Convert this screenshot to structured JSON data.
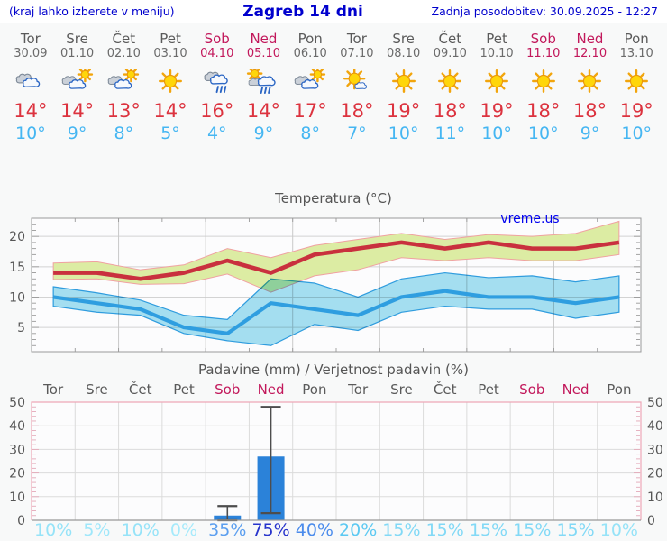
{
  "header": {
    "left_note": "(kraj lahko izberete v meniju)",
    "title": "Zagreb 14 dni",
    "updated": "Zadnja posodobitev: 30.09.2025 - 12:27"
  },
  "colors": {
    "header_blue": "#0000CD",
    "weekend_red": "#C2185B",
    "weekday_gray": "#5A5A5A",
    "high_temp_red": "#DC333F",
    "low_temp_blue": "#45B6F2",
    "temp_max_line": "#C9303E",
    "temp_max_band": "#DCECA3",
    "temp_band_edge": "#F0A1A1",
    "temp_min_line": "#2F9EE0",
    "temp_min_band": "#A6E1F2",
    "precip_bar": "#2B82D9",
    "whisker": "#4D4D4D",
    "precip_frame_pink": "#EDA7B7",
    "watermark_blue": "#0000EE"
  },
  "forecast": {
    "days": [
      {
        "name": "Tor",
        "date": "30.09",
        "weekend": false,
        "icon": "cloudy",
        "high": "14°",
        "low": "10°",
        "prob": "10%",
        "prob_color": "#96E3F8"
      },
      {
        "name": "Sre",
        "date": "01.10",
        "weekend": false,
        "icon": "sun-clouds",
        "high": "14°",
        "low": "9°",
        "prob": "5%",
        "prob_color": "#9FE7FA"
      },
      {
        "name": "Čet",
        "date": "02.10",
        "weekend": false,
        "icon": "sun-clouds",
        "high": "13°",
        "low": "8°",
        "prob": "10%",
        "prob_color": "#96E3F8"
      },
      {
        "name": "Pet",
        "date": "03.10",
        "weekend": false,
        "icon": "sunny",
        "high": "14°",
        "low": "5°",
        "prob": "0%",
        "prob_color": "#A6EAFB"
      },
      {
        "name": "Sob",
        "date": "04.10",
        "weekend": true,
        "icon": "rain",
        "high": "16°",
        "low": "4°",
        "prob": "35%",
        "prob_color": "#5C9FEF"
      },
      {
        "name": "Ned",
        "date": "05.10",
        "weekend": true,
        "icon": "sun-rain",
        "high": "14°",
        "low": "9°",
        "prob": "75%",
        "prob_color": "#2734CC"
      },
      {
        "name": "Pon",
        "date": "06.10",
        "weekend": false,
        "icon": "sun-clouds",
        "high": "17°",
        "low": "8°",
        "prob": "40%",
        "prob_color": "#4B8CEC"
      },
      {
        "name": "Tor",
        "date": "07.10",
        "weekend": false,
        "icon": "sun-cloud",
        "high": "18°",
        "low": "7°",
        "prob": "20%",
        "prob_color": "#5CC9F2"
      },
      {
        "name": "Sre",
        "date": "08.10",
        "weekend": false,
        "icon": "sunny",
        "high": "19°",
        "low": "10°",
        "prob": "15%",
        "prob_color": "#82D9F6"
      },
      {
        "name": "Čet",
        "date": "09.10",
        "weekend": false,
        "icon": "sunny",
        "high": "18°",
        "low": "11°",
        "prob": "15%",
        "prob_color": "#82D9F6"
      },
      {
        "name": "Pet",
        "date": "10.10",
        "weekend": false,
        "icon": "sunny",
        "high": "19°",
        "low": "10°",
        "prob": "15%",
        "prob_color": "#82D9F6"
      },
      {
        "name": "Sob",
        "date": "11.10",
        "weekend": true,
        "icon": "sunny",
        "high": "18°",
        "low": "10°",
        "prob": "15%",
        "prob_color": "#82D9F6"
      },
      {
        "name": "Ned",
        "date": "12.10",
        "weekend": true,
        "icon": "sunny",
        "high": "18°",
        "low": "9°",
        "prob": "15%",
        "prob_color": "#82D9F6"
      },
      {
        "name": "Pon",
        "date": "13.10",
        "weekend": false,
        "icon": "sunny",
        "high": "19°",
        "low": "10°",
        "prob": "10%",
        "prob_color": "#96E3F8"
      }
    ]
  },
  "chart_data": [
    {
      "type": "line",
      "title": "Temperatura (°C)",
      "watermark": "vreme.us",
      "categories": [
        "Tor 30.09",
        "Sre 01.10",
        "Čet 02.10",
        "Pet 03.10",
        "Sob 04.10",
        "Ned 05.10",
        "Pon 06.10",
        "Tor 07.10",
        "Sre 08.10",
        "Čet 09.10",
        "Pet 10.10",
        "Sob 11.10",
        "Ned 12.10",
        "Pon 13.10"
      ],
      "ylim": [
        1,
        23
      ],
      "yticks": [
        5,
        10,
        15,
        20
      ],
      "grid": true,
      "series": [
        {
          "name": "temp-max",
          "color": "#C9303E",
          "values": [
            14,
            14,
            13,
            14,
            16,
            14,
            17,
            18,
            19,
            18,
            19,
            18,
            18,
            19
          ]
        },
        {
          "name": "temp-max-range-upper",
          "color": "#DCECA3",
          "values": [
            15.6,
            15.8,
            14.5,
            15.3,
            18,
            16.5,
            18.5,
            19.5,
            20.5,
            19.5,
            20.3,
            20,
            20.5,
            22.5
          ]
        },
        {
          "name": "temp-max-range-lower",
          "color": "#DCECA3",
          "values": [
            12.9,
            13,
            12.1,
            12.2,
            13.8,
            10.8,
            13.5,
            14.5,
            16.5,
            16,
            16.5,
            16,
            16,
            17
          ]
        },
        {
          "name": "temp-min",
          "color": "#2F9EE0",
          "values": [
            10,
            9,
            8,
            5,
            4,
            9,
            8,
            7,
            10,
            11,
            10,
            10,
            9,
            10
          ]
        },
        {
          "name": "temp-min-range-upper",
          "color": "#A6E1F2",
          "values": [
            11.7,
            10.7,
            9.5,
            7,
            6.3,
            13,
            12.3,
            10,
            13,
            14,
            13.2,
            13.5,
            12.5,
            13.5
          ]
        },
        {
          "name": "temp-min-range-lower",
          "color": "#A6E1F2",
          "values": [
            8.5,
            7.5,
            7,
            4,
            2.8,
            2,
            5.5,
            4.5,
            7.5,
            8.5,
            8,
            8,
            6.5,
            7.5
          ]
        }
      ]
    },
    {
      "type": "bar",
      "title": "Padavine (mm) / Verjetnost padavin (%)",
      "categories": [
        "Tor",
        "Sre",
        "Čet",
        "Pet",
        "Sob",
        "Ned",
        "Pon",
        "Tor",
        "Sre",
        "Čet",
        "Pet",
        "Sob",
        "Ned",
        "Pon"
      ],
      "weekend": [
        0,
        0,
        0,
        0,
        1,
        1,
        0,
        0,
        0,
        0,
        0,
        1,
        1,
        0
      ],
      "values_mm": [
        0,
        0,
        0,
        0,
        2,
        27,
        0,
        0,
        0,
        0,
        0,
        0,
        0,
        0
      ],
      "whisker_low": [
        null,
        null,
        null,
        null,
        0,
        3,
        null,
        null,
        null,
        null,
        null,
        null,
        null,
        null
      ],
      "whisker_high": [
        null,
        null,
        null,
        null,
        6,
        48,
        null,
        null,
        null,
        null,
        null,
        null,
        null,
        null
      ],
      "probabilities": [
        "10%",
        "5%",
        "10%",
        "0%",
        "35%",
        "75%",
        "40%",
        "20%",
        "15%",
        "15%",
        "15%",
        "15%",
        "15%",
        "10%"
      ],
      "ylim": [
        0,
        50
      ],
      "yticks": [
        0,
        10,
        20,
        30,
        40,
        50
      ],
      "grid": true
    }
  ]
}
